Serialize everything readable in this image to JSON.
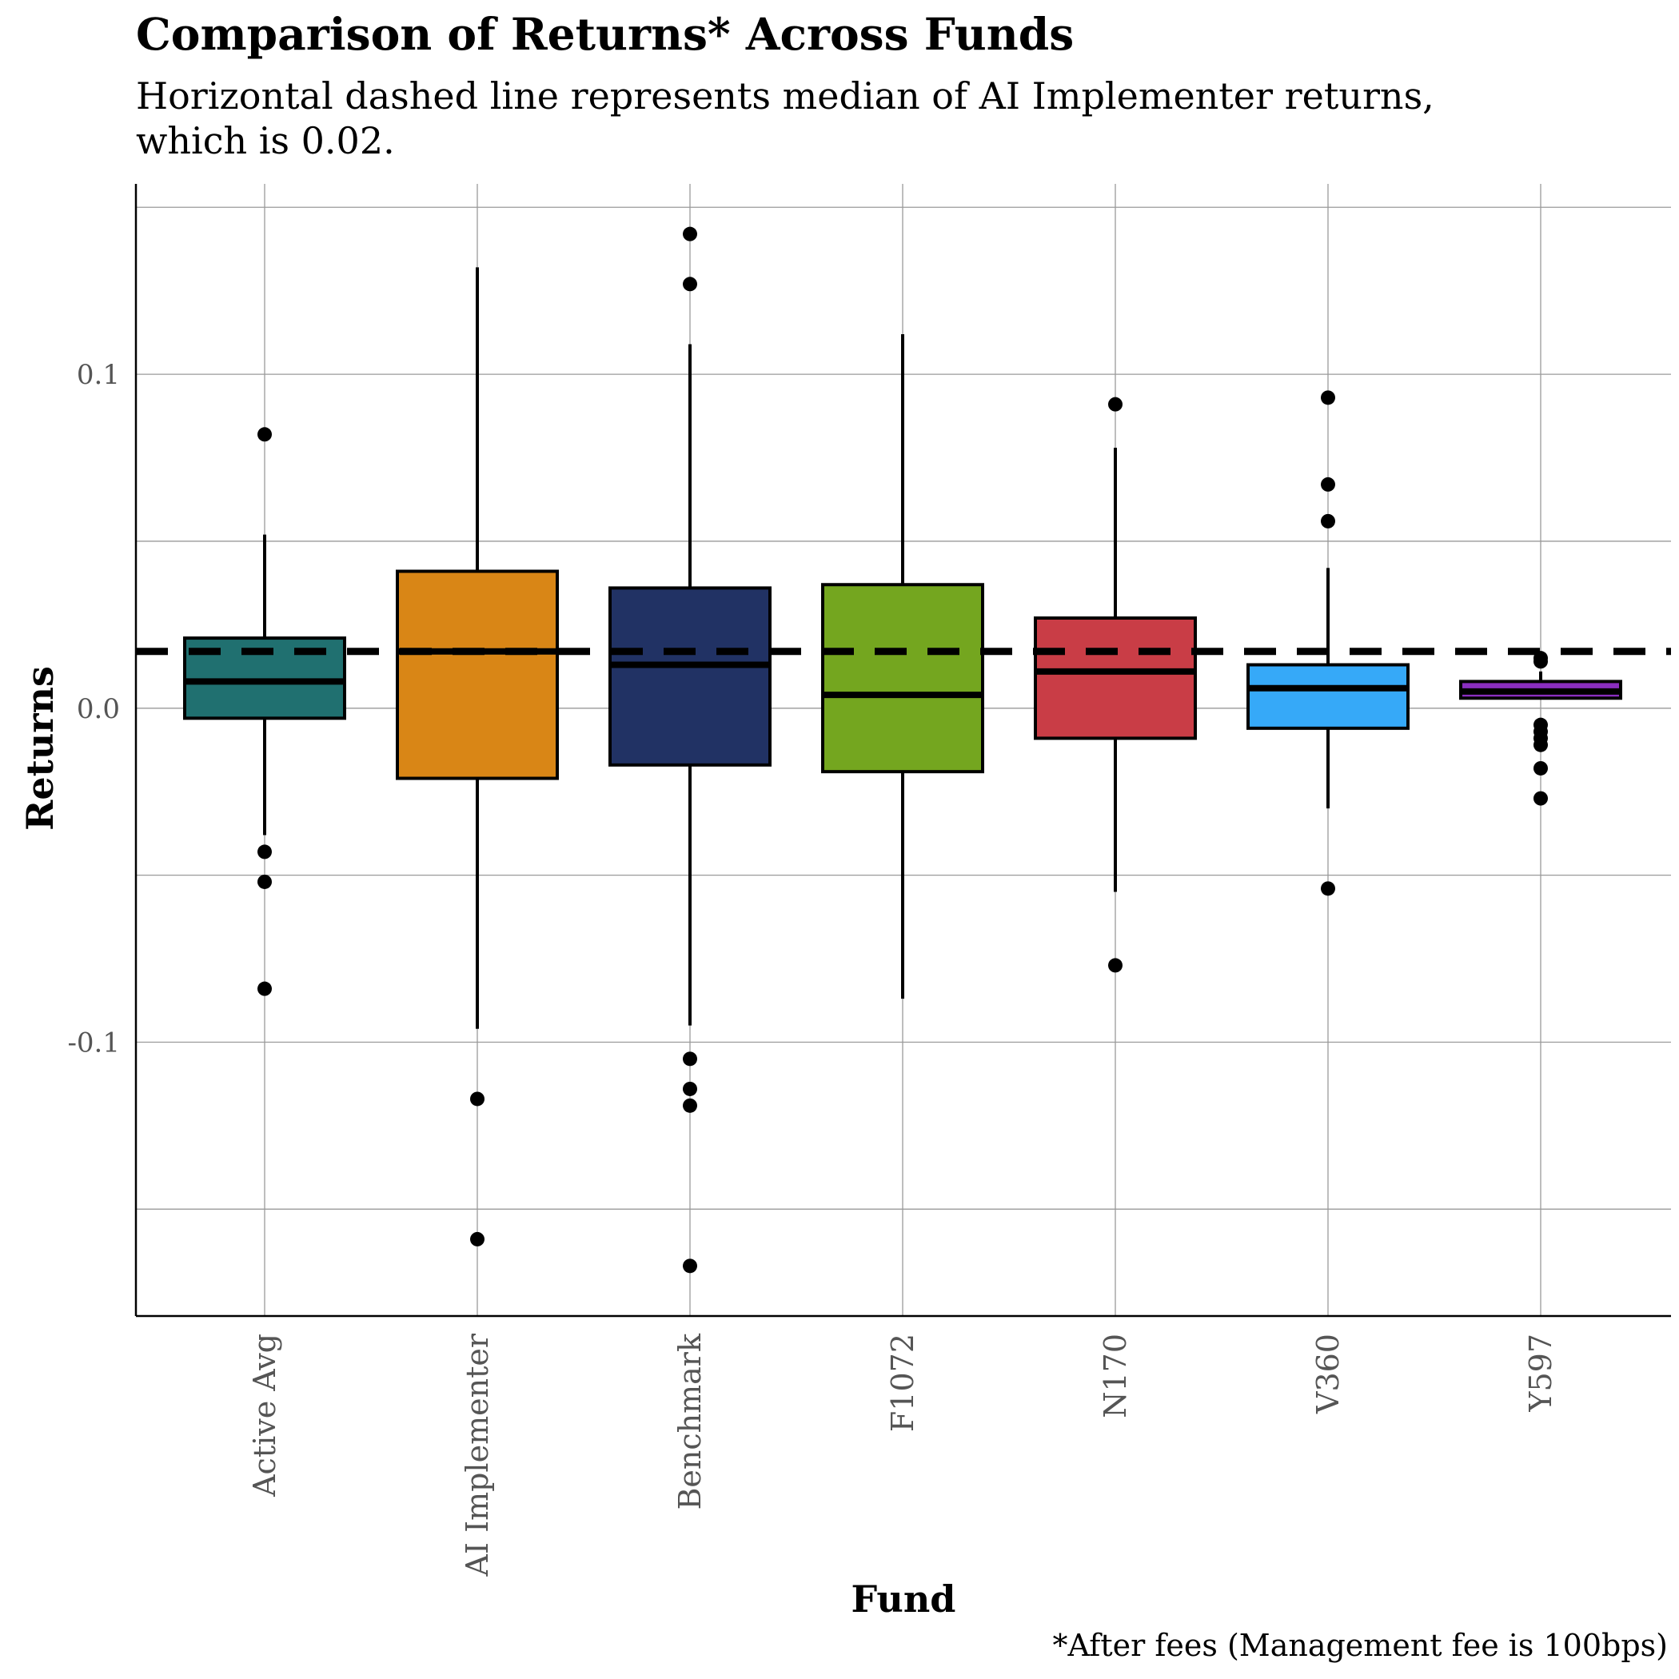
{
  "chart_data": {
    "type": "boxplot",
    "title": "Comparison of Returns* Across Funds",
    "subtitle": "Horizontal dashed line represents median of AI Implementer returns,\nwhich is 0.02.",
    "caption": "*After fees (Management fee is 100bps)",
    "xlabel": "Fund",
    "ylabel": "Returns",
    "ylim": [
      -0.182,
      0.157
    ],
    "yticks": [
      {
        "value": 0.1,
        "label": "0.1"
      },
      {
        "value": 0.0,
        "label": "0.0"
      },
      {
        "value": -0.1,
        "label": "-0.1"
      }
    ],
    "ygrid_minor": [
      0.15,
      0.05,
      -0.05,
      -0.15
    ],
    "grid": true,
    "reference_line": {
      "value": 0.017,
      "style": "dashed"
    },
    "categories": [
      "Active Avg",
      "AI Implementer",
      "Benchmark",
      "F1072",
      "N170",
      "V360",
      "Y597"
    ],
    "series": [
      {
        "category": "Active Avg",
        "color": "#207070",
        "whisker_low": -0.038,
        "q1": -0.003,
        "median": 0.008,
        "q3": 0.021,
        "whisker_high": 0.052,
        "outliers": [
          0.082,
          -0.043,
          -0.052,
          -0.084
        ]
      },
      {
        "category": "AI Implementer",
        "color": "#d98616",
        "whisker_low": -0.096,
        "q1": -0.021,
        "median": 0.017,
        "q3": 0.041,
        "whisker_high": 0.132,
        "outliers": [
          -0.117,
          -0.159
        ]
      },
      {
        "category": "Benchmark",
        "color": "#213264",
        "whisker_low": -0.095,
        "q1": -0.017,
        "median": 0.013,
        "q3": 0.036,
        "whisker_high": 0.109,
        "outliers": [
          0.142,
          0.127,
          -0.105,
          -0.114,
          -0.119,
          -0.167
        ]
      },
      {
        "category": "F1072",
        "color": "#74a61f",
        "whisker_low": -0.087,
        "q1": -0.019,
        "median": 0.004,
        "q3": 0.037,
        "whisker_high": 0.112,
        "outliers": []
      },
      {
        "category": "N170",
        "color": "#c93d46",
        "whisker_low": -0.055,
        "q1": -0.009,
        "median": 0.011,
        "q3": 0.027,
        "whisker_high": 0.078,
        "outliers": [
          0.091,
          -0.077
        ]
      },
      {
        "category": "V360",
        "color": "#36a9f8",
        "whisker_low": -0.03,
        "q1": -0.006,
        "median": 0.006,
        "q3": 0.013,
        "whisker_high": 0.042,
        "outliers": [
          0.093,
          0.067,
          0.056,
          -0.054
        ]
      },
      {
        "category": "Y597",
        "color": "#8a2ec0",
        "whisker_low": 0.003,
        "q1": 0.003,
        "median": 0.005,
        "q3": 0.008,
        "whisker_high": 0.011,
        "outliers": [
          0.015,
          0.014,
          -0.005,
          -0.007,
          -0.009,
          -0.011,
          -0.018,
          -0.027
        ]
      }
    ]
  }
}
